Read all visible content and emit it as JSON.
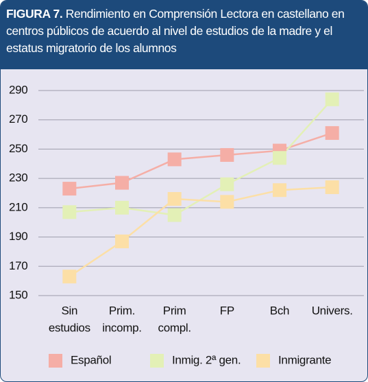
{
  "chart_data": {
    "type": "line",
    "label": "FIGURA 7.",
    "title": "Rendimiento en Comprensión Lectora en castellano en centros públicos de acuerdo al nivel de estudios de la madre y el estatus migratorio de los alumnos",
    "categories": [
      [
        "Sin",
        "estudios"
      ],
      [
        "Prim.",
        "incomp."
      ],
      [
        "Prim",
        "compl."
      ],
      [
        "FP"
      ],
      [
        "Bch"
      ],
      [
        "Univers."
      ]
    ],
    "series": [
      {
        "name": "Español",
        "color": "#f5aea6",
        "values": [
          223,
          227,
          243,
          246,
          249,
          261
        ]
      },
      {
        "name": "Inmig. 2ª gen.",
        "color": "#e3f0b6",
        "values": [
          207,
          210,
          205,
          226,
          244,
          284
        ]
      },
      {
        "name": "Inmigrante",
        "color": "#fcdfa6",
        "values": [
          163,
          187,
          216,
          214,
          222,
          224
        ]
      }
    ],
    "ylim": [
      150,
      290
    ],
    "yticks": [
      150,
      170,
      190,
      210,
      230,
      250,
      270,
      290
    ],
    "grid": true
  }
}
